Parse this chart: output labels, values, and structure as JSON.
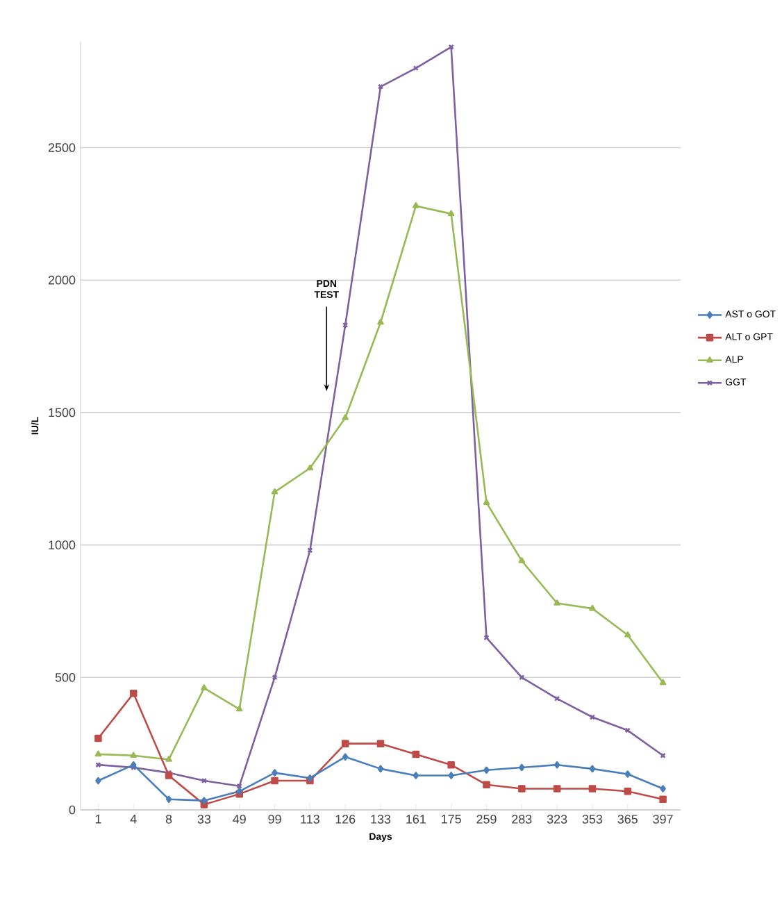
{
  "chart_data": {
    "type": "line",
    "xlabel": "Days",
    "ylabel": "IU/L",
    "categories": [
      "1",
      "4",
      "8",
      "33",
      "49",
      "99",
      "113",
      "126",
      "133",
      "161",
      "175",
      "259",
      "283",
      "323",
      "353",
      "365",
      "397"
    ],
    "series": [
      {
        "name": "AST o GOT",
        "color": "#4a7ebb",
        "marker": "diamond",
        "values": [
          110,
          170,
          40,
          35,
          70,
          140,
          120,
          200,
          155,
          130,
          130,
          150,
          160,
          170,
          155,
          135,
          80
        ]
      },
      {
        "name": "ALT o GPT",
        "color": "#be4b48",
        "marker": "square",
        "values": [
          270,
          440,
          130,
          20,
          60,
          110,
          110,
          250,
          250,
          210,
          170,
          95,
          80,
          80,
          80,
          70,
          40
        ]
      },
      {
        "name": "ALP",
        "color": "#98b954",
        "marker": "triangle",
        "values": [
          210,
          205,
          190,
          460,
          380,
          1200,
          1290,
          1480,
          1840,
          2280,
          2250,
          1160,
          940,
          780,
          760,
          660,
          480
        ]
      },
      {
        "name": "GGT",
        "color": "#7d60a0",
        "marker": "cross",
        "values": [
          170,
          160,
          140,
          110,
          90,
          500,
          980,
          1830,
          2730,
          2800,
          2880,
          650,
          500,
          420,
          350,
          300,
          205
        ]
      }
    ],
    "ylim": [
      0,
      2900
    ],
    "yticks": [
      0,
      500,
      1000,
      1500,
      2000,
      2500
    ],
    "grid": "y",
    "legend": "right",
    "line_style": "solid",
    "annotations": [
      "PDN TEST"
    ]
  }
}
